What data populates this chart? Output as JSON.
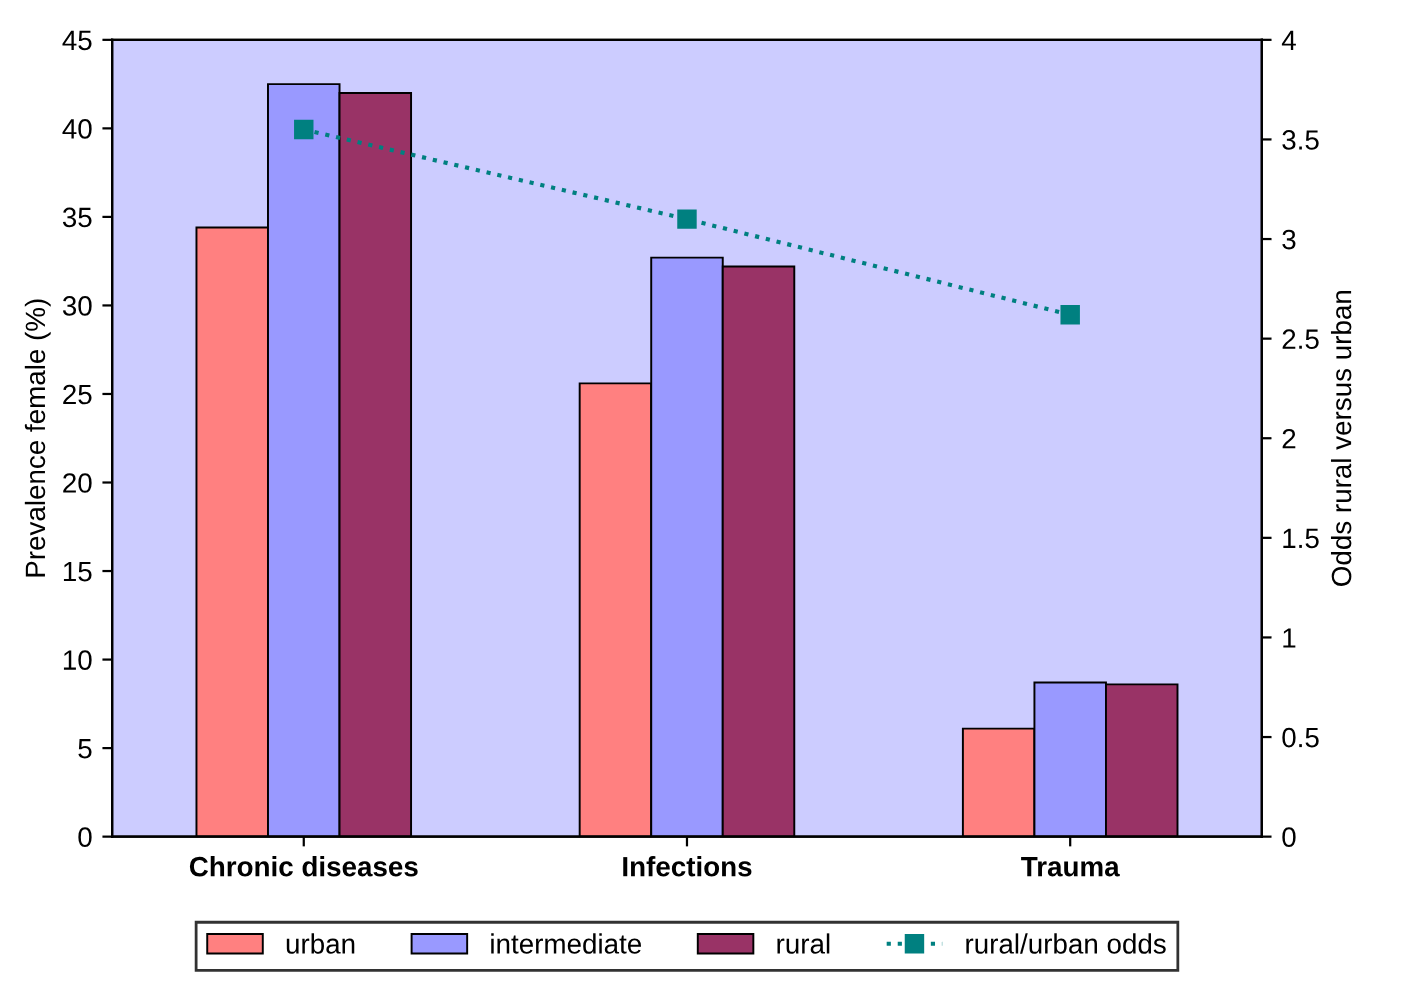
{
  "chart_data": {
    "type": "bar",
    "categories": [
      "Chronic diseases",
      "Infections",
      "Trauma"
    ],
    "ylabel": "Prevalence female (%)",
    "y2label": "Odds rural versus urban",
    "ylim": [
      0,
      45
    ],
    "yticks": [
      0,
      5,
      10,
      15,
      20,
      25,
      30,
      35,
      40,
      45
    ],
    "y2lim": [
      0,
      4
    ],
    "y2ticks": [
      0,
      0.5,
      1,
      1.5,
      2,
      2.5,
      3,
      3.5,
      4
    ],
    "series": [
      {
        "name": "urban",
        "color": "#ff8080",
        "values": [
          34.4,
          25.6,
          6.1
        ]
      },
      {
        "name": "intermediate",
        "color": "#9999ff",
        "values": [
          42.5,
          32.7,
          8.7
        ]
      },
      {
        "name": "rural",
        "color": "#993366",
        "values": [
          42.0,
          32.2,
          8.6
        ]
      },
      {
        "name": "rural/urban odds",
        "type": "line",
        "axis": "y2",
        "color": "#008080",
        "values": [
          3.55,
          3.1,
          2.62
        ],
        "marker": "square",
        "line_style": "dotted"
      }
    ],
    "grid": false,
    "legend": "bottom"
  }
}
